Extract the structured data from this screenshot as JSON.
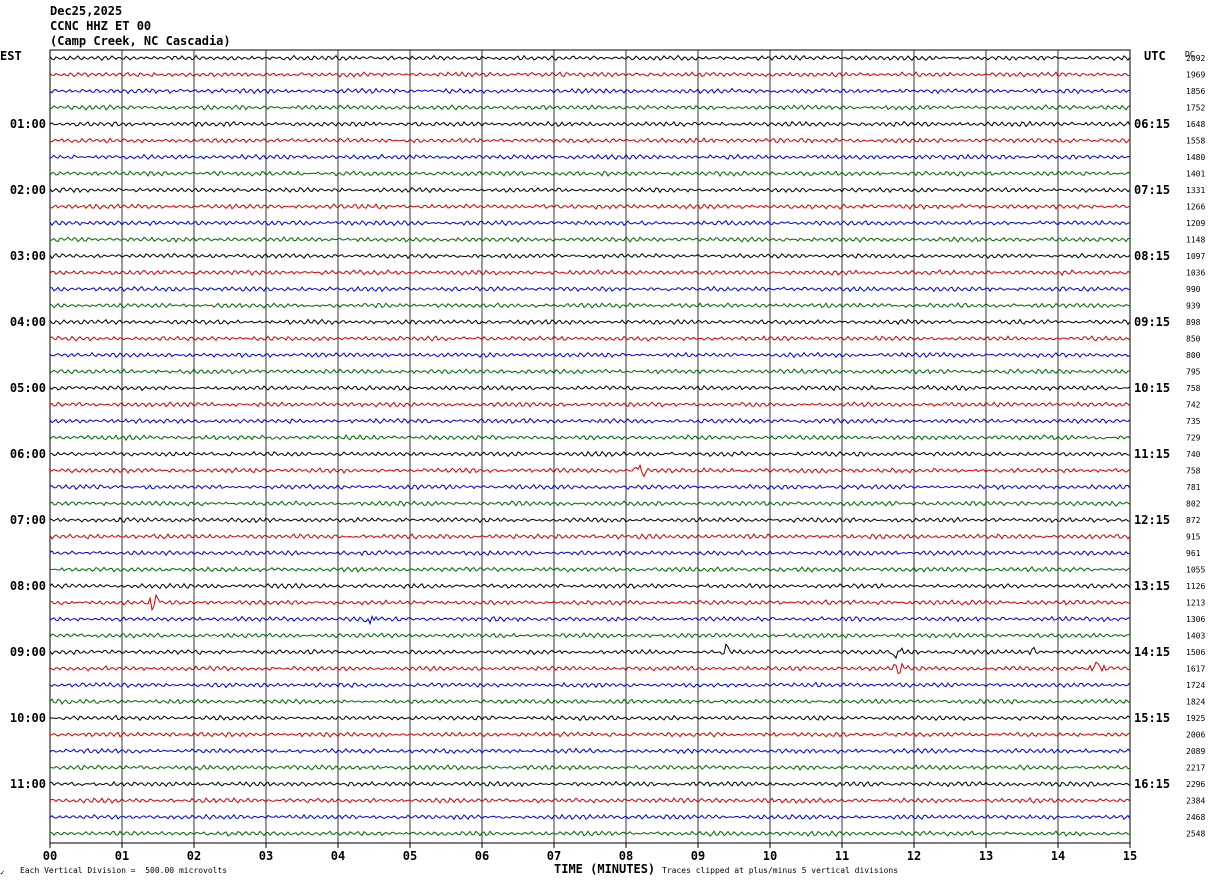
{
  "header": {
    "date": "Dec25,2025",
    "station": "CCNC HHZ ET 00",
    "location": "(Camp Creek, NC Cascadia)"
  },
  "left_axis_title": "EST",
  "right_axis_title": "UTC",
  "dc_title": "DC",
  "colors": {
    "traces": [
      "#000000",
      "#cc0000",
      "#0000cc",
      "#006600"
    ],
    "grid": "#000000"
  },
  "chart_data": {
    "type": "line",
    "title": "CCNC HHZ ET 00",
    "xlabel": "TIME (MINUTES)",
    "xlim": [
      0,
      15
    ],
    "x_ticks": [
      "00",
      "01",
      "02",
      "03",
      "04",
      "05",
      "06",
      "07",
      "08",
      "09",
      "10",
      "11",
      "12",
      "13",
      "14",
      "15"
    ],
    "rows_per_hour": 4,
    "row_count": 48,
    "est_hour_labels": [
      "01:00",
      "02:00",
      "03:00",
      "04:00",
      "05:00",
      "06:00",
      "07:00",
      "08:00",
      "09:00",
      "10:00",
      "11:00"
    ],
    "utc_hour_labels": [
      "06:15",
      "07:15",
      "08:15",
      "09:15",
      "10:15",
      "11:15",
      "12:15",
      "13:15",
      "14:15",
      "15:15",
      "16:15"
    ],
    "dc_offsets": [
      2092,
      1969,
      1856,
      1752,
      1648,
      1558,
      1480,
      1401,
      1331,
      1266,
      1209,
      1148,
      1097,
      1036,
      990,
      939,
      898,
      850,
      800,
      795,
      758,
      742,
      735,
      729,
      740,
      758,
      781,
      802,
      872,
      915,
      961,
      1055,
      1126,
      1213,
      1306,
      1403,
      1506,
      1617,
      1724,
      1824,
      1925,
      2006,
      2089,
      2217,
      2296,
      2384,
      2468,
      2548
    ],
    "scale": "Each Vertical Division =  500.00 microvolts",
    "clip_note": "Traces clipped at plus/minus 5 vertical divisions",
    "events": [
      {
        "row": 33,
        "minute": 1.45
      },
      {
        "row": 36,
        "minute": 9.4
      },
      {
        "row": 36,
        "minute": 11.75
      },
      {
        "row": 36,
        "minute": 13.6
      },
      {
        "row": 37,
        "minute": 11.8
      },
      {
        "row": 37,
        "minute": 14.55
      },
      {
        "row": 34,
        "minute": 4.45
      },
      {
        "row": 25,
        "minute": 8.2
      }
    ]
  }
}
